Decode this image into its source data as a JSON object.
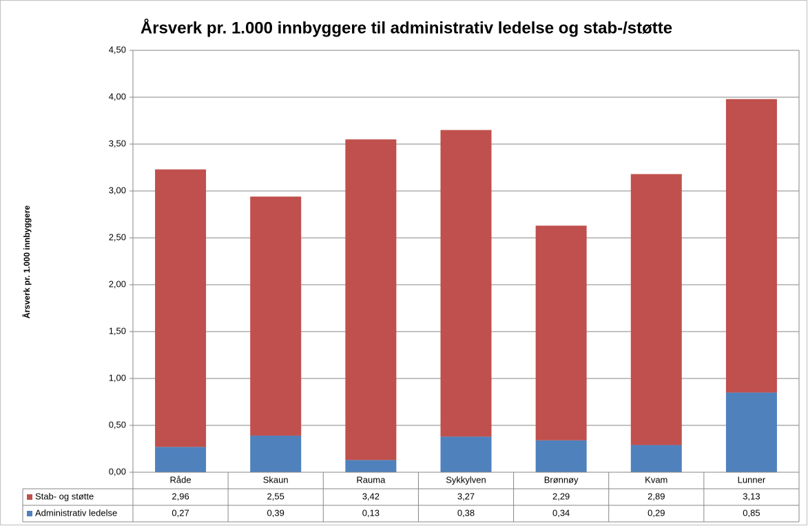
{
  "chart_data": {
    "type": "stacked_bar",
    "title": "Årsverk pr. 1.000 innbyggere til administrativ ledelse og stab-/støtte",
    "y_label": "Årsverk pr. 1.000 innbyggere",
    "categories": [
      "Råde",
      "Skaun",
      "Rauma",
      "Sykkylven",
      "Brønnøy",
      "Kvam",
      "Lunner"
    ],
    "series": [
      {
        "name": "Stab- og støtte",
        "color": "#c0504d",
        "values": [
          2.96,
          2.55,
          3.42,
          3.27,
          2.29,
          2.89,
          3.13
        ],
        "value_labels": [
          "2,96",
          "2,55",
          "3,42",
          "3,27",
          "2,29",
          "2,89",
          "3,13"
        ]
      },
      {
        "name": "Administrativ ledelse",
        "color": "#4f81bd",
        "values": [
          0.27,
          0.39,
          0.13,
          0.38,
          0.34,
          0.29,
          0.85
        ],
        "value_labels": [
          "0,27",
          "0,39",
          "0,13",
          "0,38",
          "0,34",
          "0,29",
          "0,85"
        ]
      }
    ],
    "ylim": [
      0,
      4.5
    ],
    "yticks": [
      {
        "value": 0,
        "label": "0,00"
      },
      {
        "value": 0.5,
        "label": "0,50"
      },
      {
        "value": 1,
        "label": "1,00"
      },
      {
        "value": 1.5,
        "label": "1,50"
      },
      {
        "value": 2,
        "label": "2,00"
      },
      {
        "value": 2.5,
        "label": "2,50"
      },
      {
        "value": 3,
        "label": "3,00"
      },
      {
        "value": 3.5,
        "label": "3,50"
      },
      {
        "value": 4,
        "label": "4,00"
      },
      {
        "value": 4.5,
        "label": "4,50"
      }
    ],
    "grid": true
  }
}
